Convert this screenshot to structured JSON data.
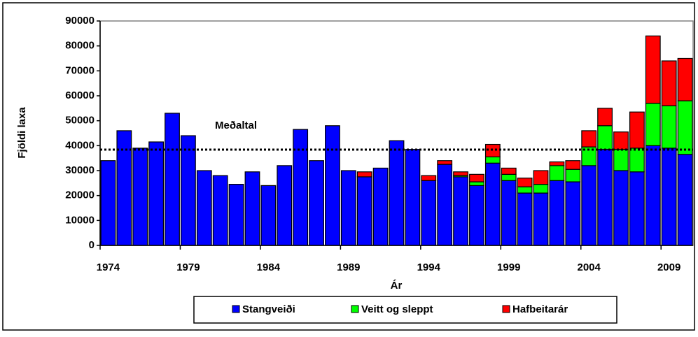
{
  "chart_data": {
    "type": "stacked-bar",
    "categories": [
      "1974",
      null,
      null,
      null,
      null,
      "1979",
      null,
      null,
      null,
      null,
      "1984",
      null,
      null,
      null,
      null,
      "1989",
      null,
      null,
      null,
      null,
      "1994",
      null,
      null,
      null,
      null,
      "1999",
      null,
      null,
      null,
      null,
      "2004",
      null,
      null,
      null,
      null,
      "2009",
      null
    ],
    "series": [
      {
        "name": "Stangveiði",
        "color": "#0000ff",
        "values": [
          34000,
          46000,
          39000,
          41500,
          53000,
          44000,
          30000,
          28000,
          24500,
          29500,
          24000,
          32000,
          46500,
          34000,
          48000,
          30000,
          27500,
          31000,
          42000,
          38500,
          26000,
          32500,
          27500,
          24000,
          33000,
          26000,
          21000,
          21000,
          26000,
          25500,
          32000,
          38500,
          30000,
          29500,
          40000,
          39000,
          36500
        ]
      },
      {
        "name": "Veitt og sleppt",
        "color": "#00ff00",
        "values": [
          0,
          0,
          0,
          0,
          0,
          0,
          0,
          0,
          0,
          0,
          0,
          0,
          0,
          0,
          0,
          0,
          0,
          0,
          0,
          0,
          0,
          0,
          500,
          1500,
          2500,
          2500,
          2500,
          3500,
          6000,
          5000,
          7500,
          9500,
          8500,
          9500,
          17000,
          17000,
          21500
        ]
      },
      {
        "name": "Hafbeitarár",
        "color": "#ff0000",
        "values": [
          0,
          0,
          0,
          0,
          0,
          0,
          0,
          0,
          0,
          0,
          0,
          0,
          0,
          0,
          0,
          0,
          2000,
          0,
          0,
          0,
          2000,
          1500,
          1500,
          3000,
          5000,
          2500,
          3500,
          5500,
          1500,
          3500,
          6500,
          7000,
          7000,
          14500,
          27000,
          18000,
          17000
        ]
      }
    ],
    "ylim": [
      0,
      90000
    ],
    "yticks": [
      0,
      10000,
      20000,
      30000,
      40000,
      50000,
      60000,
      70000,
      80000,
      90000
    ],
    "xlabel": "Ár",
    "ylabel": "Fjöldi laxa",
    "average": {
      "label": "Meðaltal",
      "value": 38400
    }
  }
}
